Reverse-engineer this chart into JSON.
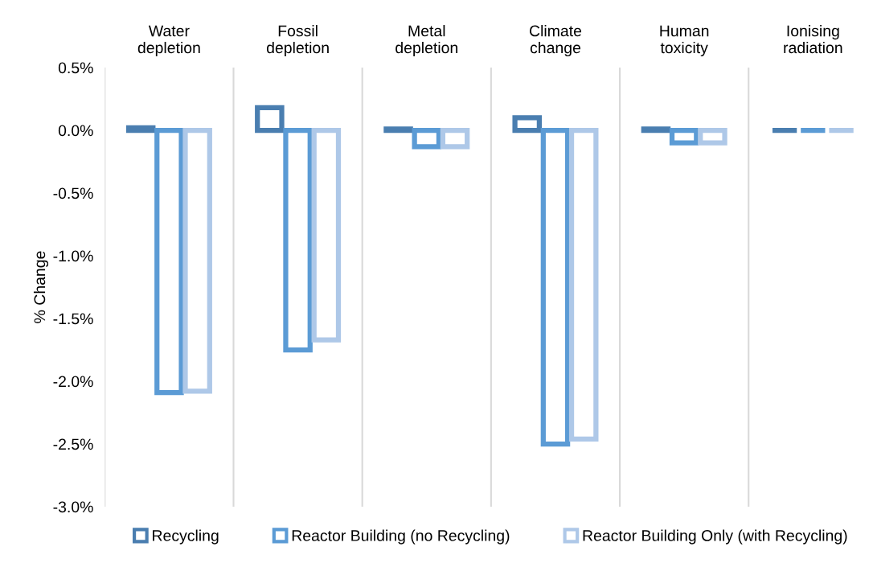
{
  "chart_data": {
    "type": "bar",
    "ylabel": "% Change",
    "categories": [
      "Water\ndepletion",
      "Fossil\ndepletion",
      "Metal\ndepletion",
      "Climate\nchange",
      "Human\ntoxicity",
      "Ionising\nradiation"
    ],
    "series": [
      {
        "name": "Recycling",
        "color": "#4a7eb0",
        "values": [
          0.02,
          0.18,
          0.01,
          0.1,
          0.01,
          0.0
        ]
      },
      {
        "name": "Reactor Building (no Recycling)",
        "color": "#5b9bd5",
        "values": [
          -2.09,
          -1.75,
          -0.13,
          -2.5,
          -0.1,
          0.0
        ]
      },
      {
        "name": "Reactor Building Only (with Recycling)",
        "color": "#aec8e8",
        "values": [
          -2.08,
          -1.67,
          -0.13,
          -2.46,
          -0.1,
          0.0
        ]
      }
    ],
    "ylim": [
      -3.0,
      0.5
    ],
    "yticks": [
      {
        "value": 0.5,
        "label": "0.5%"
      },
      {
        "value": 0.0,
        "label": "0.0%"
      },
      {
        "value": -0.5,
        "label": "-0.5%"
      },
      {
        "value": -1.0,
        "label": "-1.0%"
      },
      {
        "value": -1.5,
        "label": "-1.5%"
      },
      {
        "value": -2.0,
        "label": "-2.0%"
      },
      {
        "value": -2.5,
        "label": "-2.5%"
      },
      {
        "value": -3.0,
        "label": "-3.0%"
      }
    ],
    "grid": "x",
    "legend": "bottom"
  }
}
